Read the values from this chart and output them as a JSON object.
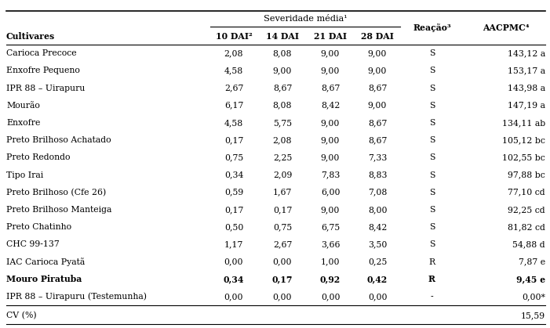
{
  "col_headers": [
    "Cultivares",
    "10 DAI²",
    "14 DAI",
    "21 DAI",
    "28 DAI",
    "Reação³",
    "AACPMC⁴"
  ],
  "sev_label": "Severidade média¹",
  "rows": [
    [
      "Carioca Precoce",
      "2,08",
      "8,08",
      "9,00",
      "9,00",
      "S",
      "143,12 a",
      false
    ],
    [
      "Enxofre Pequeno",
      "4,58",
      "9,00",
      "9,00",
      "9,00",
      "S",
      "153,17 a",
      false
    ],
    [
      "IPR 88 – Uirapuru",
      "2,67",
      "8,67",
      "8,67",
      "8,67",
      "S",
      "143,98 a",
      false
    ],
    [
      "Mourão",
      "6,17",
      "8,08",
      "8,42",
      "9,00",
      "S",
      "147,19 a",
      false
    ],
    [
      "Enxofre",
      "4,58",
      "5,75",
      "9,00",
      "8,67",
      "S",
      "134,11 ab",
      false
    ],
    [
      "Preto Brilhoso Achatado",
      "0,17",
      "2,08",
      "9,00",
      "8,67",
      "S",
      "105,12 bc",
      false
    ],
    [
      "Preto Redondo",
      "0,75",
      "2,25",
      "9,00",
      "7,33",
      "S",
      "102,55 bc",
      false
    ],
    [
      "Tipo Irai",
      "0,34",
      "2,09",
      "7,83",
      "8,83",
      "S",
      "97,88 bc",
      false
    ],
    [
      "Preto Brilhoso (Cfe 26)",
      "0,59",
      "1,67",
      "6,00",
      "7,08",
      "S",
      "77,10 cd",
      false
    ],
    [
      "Preto Brilhoso Manteiga",
      "0,17",
      "0,17",
      "9,00",
      "8,00",
      "S",
      "92,25 cd",
      false
    ],
    [
      "Preto Chatinho",
      "0,50",
      "0,75",
      "6,75",
      "8,42",
      "S",
      "81,82 cd",
      false
    ],
    [
      "CHC 99-137",
      "1,17",
      "2,67",
      "3,66",
      "3,50",
      "S",
      "54,88 d",
      false
    ],
    [
      "IAC Carioca Pyatã",
      "0,00",
      "0,00",
      "1,00",
      "0,25",
      "R",
      "7,87 e",
      false
    ],
    [
      "Mouro Piratuba",
      "0,34",
      "0,17",
      "0,92",
      "0,42",
      "R",
      "9,45 e",
      true
    ],
    [
      "IPR 88 – Uirapuru (Testemunha)",
      "0,00",
      "0,00",
      "0,00",
      "0,00",
      "-",
      "0,00*",
      false
    ]
  ],
  "footer_label": "CV (%)",
  "footer_value": "15,59",
  "bg_color": "#ffffff",
  "text_color": "#000000",
  "font_size": 7.8
}
